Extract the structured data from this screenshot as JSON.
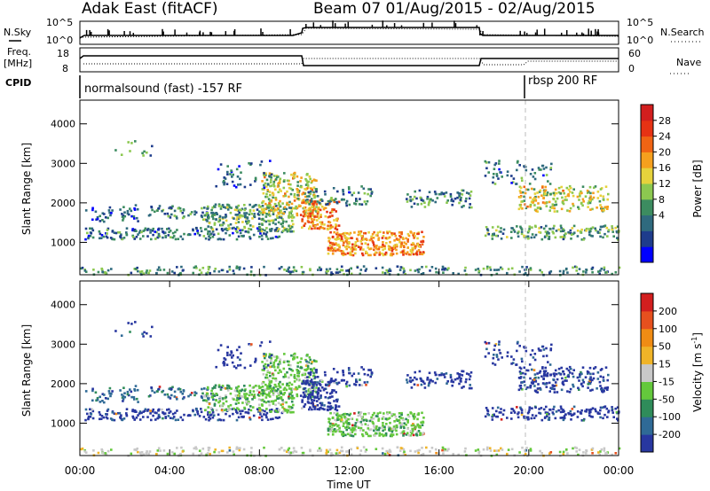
{
  "header": {
    "station": "Adak East (fitACF)",
    "beam_date": "Beam 07 01/Aug/2015 - 02/Aug/2015"
  },
  "panels": {
    "noise": {
      "left_label": "N.Sky",
      "left_ticks": [
        "10^5",
        "10^0"
      ],
      "right_label": "N.Search",
      "right_ticks": [
        "10^5",
        "10^0"
      ]
    },
    "freq": {
      "left_label_1": "Freq.",
      "left_label_2": "[MHz]",
      "left_ticks": [
        "18",
        "8"
      ],
      "right_label": "Nave",
      "right_ticks": [
        "60",
        "0"
      ]
    },
    "cpid": {
      "label": "CPID",
      "programs": [
        "normalsound (fast) -157 RF",
        "rbsp 200 RF"
      ]
    }
  },
  "chart_data": [
    {
      "type": "heatmap",
      "title": "",
      "xlabel": "Time UT",
      "ylabel": "Slant Range [km]",
      "x_ticks": [
        "00:00",
        "04:00",
        "08:00",
        "12:00",
        "16:00",
        "20:00",
        "00:00"
      ],
      "y_ticks": [
        1000,
        2000,
        3000,
        4000
      ],
      "xlim_hours": [
        0,
        24
      ],
      "ylim_km": [
        180,
        4600
      ],
      "colorbar": {
        "label": "Power [dB]",
        "ticks": [
          "28",
          "24",
          "20",
          "16",
          "12",
          "8",
          "4"
        ],
        "colors": [
          "#0000ff",
          "#1e3c8c",
          "#2f6a7e",
          "#3c8c60",
          "#8cc850",
          "#e6d23c",
          "#f5a01e",
          "#f06414",
          "#e63214",
          "#d21e1e"
        ]
      }
    },
    {
      "type": "heatmap",
      "title": "",
      "xlabel": "Time UT",
      "ylabel": "Slant Range [km]",
      "x_ticks": [
        "00:00",
        "04:00",
        "08:00",
        "12:00",
        "16:00",
        "20:00",
        "00:00"
      ],
      "y_ticks": [
        1000,
        2000,
        3000,
        4000
      ],
      "xlim_hours": [
        0,
        24
      ],
      "ylim_km": [
        180,
        4600
      ],
      "colorbar": {
        "label_1": "Velocity",
        "label_2": "[m s",
        "label_exp": "-1",
        "label_3": "]",
        "ticks": [
          "200",
          "100",
          "50",
          "15",
          "-15",
          "-50",
          "-100",
          "-200"
        ],
        "colors": [
          "#2837a0",
          "#2f6a96",
          "#2f8c5a",
          "#64c83c",
          "#c8c8c8",
          "#f0b428",
          "#f08c14",
          "#e6501e",
          "#d21e1e"
        ]
      }
    }
  ],
  "scatter_regions": [
    {
      "t0": 1.3,
      "t1": 3.5,
      "r0": 3150,
      "r1": 3600,
      "pwr": 10,
      "vel": 0,
      "d": 0.07
    },
    {
      "t0": 0.2,
      "t1": 2.6,
      "r0": 1550,
      "r1": 2000,
      "pwr": 7,
      "vel": 1,
      "d": 0.25
    },
    {
      "t0": 3.0,
      "t1": 6.3,
      "r0": 1600,
      "r1": 1950,
      "pwr": 9,
      "vel": 1,
      "d": 0.35
    },
    {
      "t0": 0.2,
      "t1": 9.0,
      "r0": 1100,
      "r1": 1400,
      "pwr": 8,
      "vel": 0,
      "d": 0.45
    },
    {
      "t0": 5.5,
      "t1": 9.5,
      "r0": 1300,
      "r1": 2000,
      "pwr": 12,
      "vel": 3,
      "d": 0.55
    },
    {
      "t0": 8.0,
      "t1": 10.5,
      "r0": 1700,
      "r1": 2800,
      "pwr": 17,
      "vel": 3,
      "d": 0.5
    },
    {
      "t0": 9.8,
      "t1": 11.5,
      "r0": 1350,
      "r1": 2100,
      "pwr": 22,
      "vel": 0,
      "d": 0.6
    },
    {
      "t0": 11.0,
      "t1": 15.3,
      "r0": 700,
      "r1": 1300,
      "pwr": 22,
      "vel": 3,
      "d": 0.75
    },
    {
      "t0": 10.0,
      "t1": 13.0,
      "r0": 1950,
      "r1": 2450,
      "pwr": 9,
      "vel": 0,
      "d": 0.3
    },
    {
      "t0": 6.0,
      "t1": 8.5,
      "r0": 2400,
      "r1": 3100,
      "pwr": 7,
      "vel": 0,
      "d": 0.15
    },
    {
      "t0": 14.5,
      "t1": 17.5,
      "r0": 1900,
      "r1": 2350,
      "pwr": 10,
      "vel": 0,
      "d": 0.35
    },
    {
      "t0": 18.0,
      "t1": 24.0,
      "r0": 1100,
      "r1": 1450,
      "pwr": 11,
      "vel": 0,
      "d": 0.45
    },
    {
      "t0": 19.5,
      "t1": 23.5,
      "r0": 1800,
      "r1": 2450,
      "pwr": 17,
      "vel": 0,
      "d": 0.45
    },
    {
      "t0": 18.0,
      "t1": 21.0,
      "r0": 2500,
      "r1": 3100,
      "pwr": 8,
      "vel": 0,
      "d": 0.2
    },
    {
      "t0": 0.0,
      "t1": 24.0,
      "r0": 200,
      "r1": 420,
      "pwr": 10,
      "vel": 4,
      "d": 0.3
    }
  ]
}
